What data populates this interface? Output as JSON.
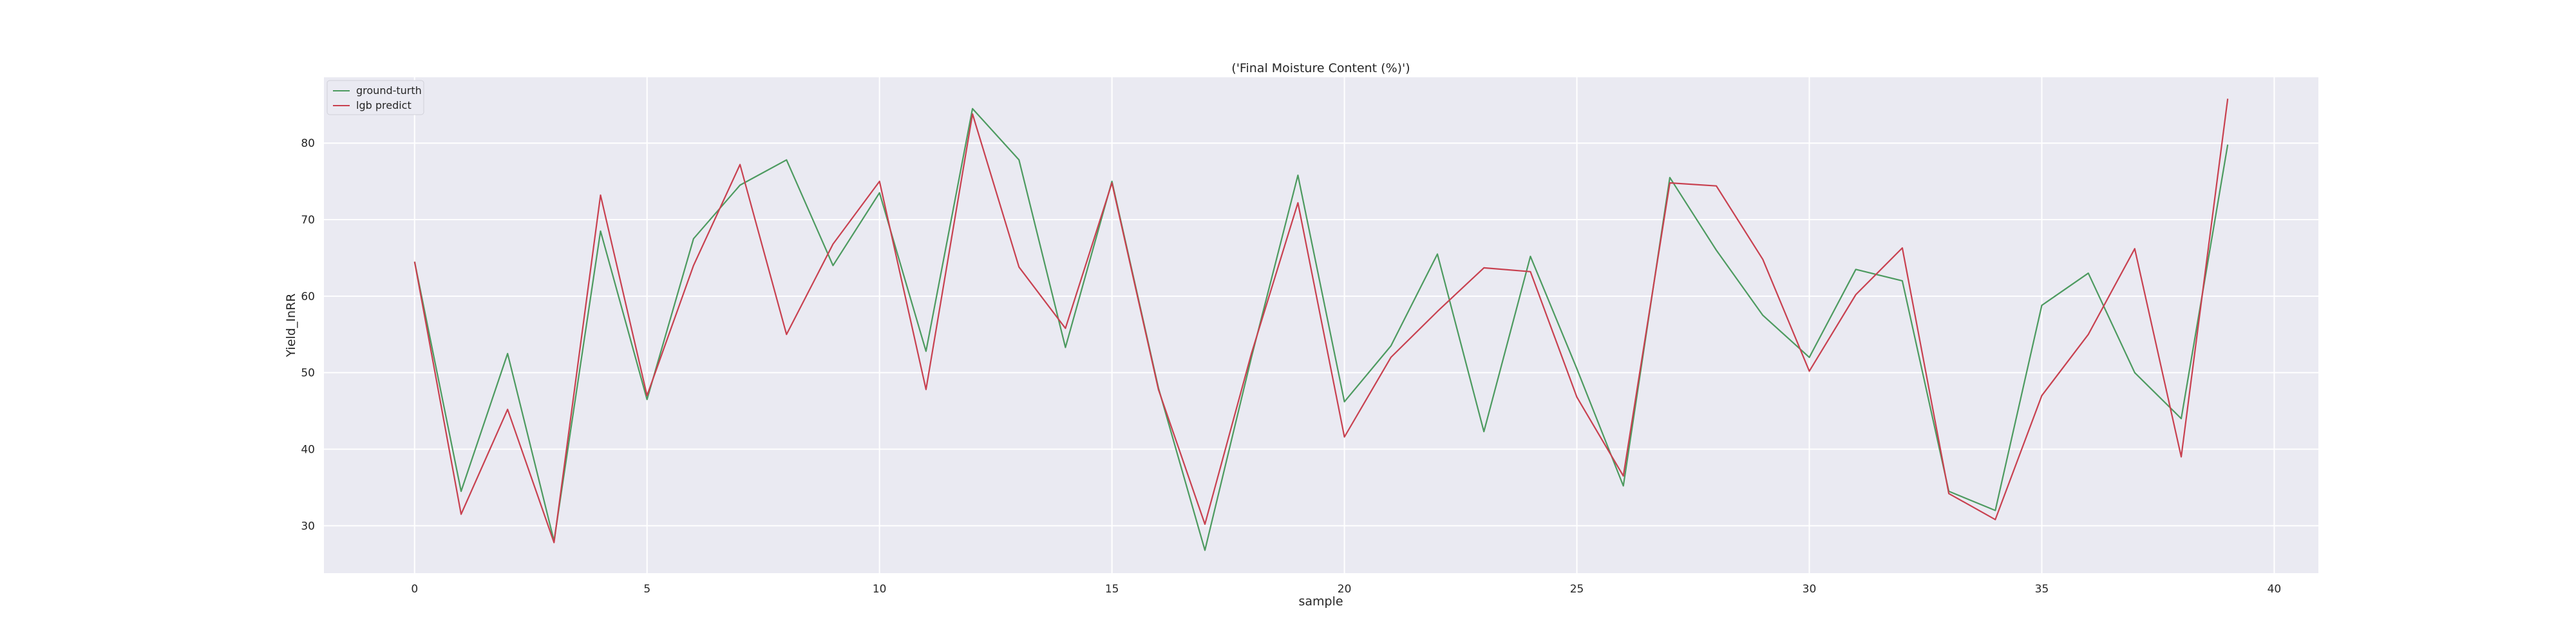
{
  "chart_data": {
    "type": "line",
    "title": "('Final Moisture Content (%)')",
    "xlabel": "sample",
    "ylabel": "Yield_InRR",
    "xlim": [
      -1.95,
      40.95
    ],
    "ylim": [
      23.8,
      88.6
    ],
    "xticks": [
      0,
      5,
      10,
      15,
      20,
      25,
      30,
      35,
      40
    ],
    "yticks": [
      30,
      40,
      50,
      60,
      70,
      80
    ],
    "grid": true,
    "legend_position": "top-left",
    "x": [
      0,
      1,
      2,
      3,
      4,
      5,
      6,
      7,
      8,
      9,
      10,
      11,
      12,
      13,
      14,
      15,
      16,
      17,
      18,
      19,
      20,
      21,
      22,
      23,
      24,
      25,
      26,
      27,
      28,
      29,
      30,
      31,
      32,
      33,
      34,
      35,
      36,
      37,
      38,
      39
    ],
    "series": [
      {
        "name": "ground-turth",
        "color": "#4c9a5f",
        "values": [
          64.5,
          34.5,
          52.5,
          28.0,
          68.5,
          46.5,
          67.5,
          74.5,
          77.8,
          64.0,
          73.5,
          52.8,
          84.5,
          77.8,
          53.3,
          75.0,
          48.0,
          26.8,
          52.0,
          75.8,
          46.2,
          53.5,
          65.5,
          42.3,
          65.2,
          50.5,
          35.2,
          75.5,
          66.0,
          57.5,
          52.0,
          63.5,
          62.0,
          34.5,
          32.0,
          58.8,
          63.0,
          50.0,
          44.0,
          79.8
        ]
      },
      {
        "name": "lgb predict",
        "color": "#c8404f",
        "values": [
          64.5,
          31.5,
          45.2,
          27.8,
          73.2,
          47.0,
          64.0,
          77.2,
          55.0,
          66.8,
          75.0,
          47.8,
          83.8,
          63.8,
          55.8,
          74.8,
          47.8,
          30.2,
          52.5,
          72.2,
          41.6,
          52.0,
          58.0,
          63.7,
          63.2,
          46.8,
          36.5,
          74.8,
          74.4,
          64.8,
          50.2,
          60.2,
          66.3,
          34.2,
          30.8,
          47.0,
          55.0,
          66.2,
          39.0,
          85.8
        ]
      }
    ]
  }
}
